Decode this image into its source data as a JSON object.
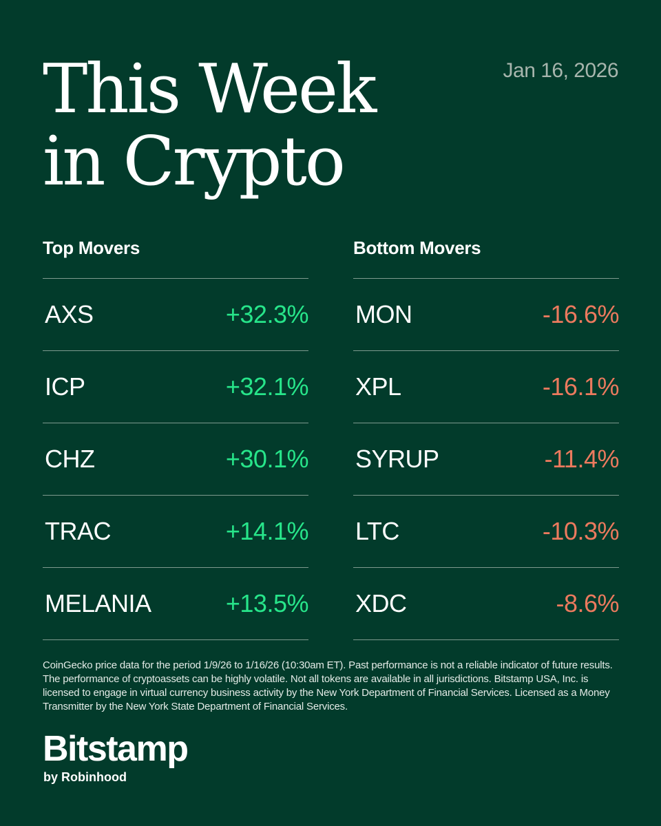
{
  "header": {
    "title_line1": "This Week",
    "title_line2": "in Crypto",
    "date": "Jan 16, 2026"
  },
  "top_movers": {
    "heading": "Top Movers",
    "items": [
      {
        "symbol": "AXS",
        "change": "+32.3%"
      },
      {
        "symbol": "ICP",
        "change": "+32.1%"
      },
      {
        "symbol": "CHZ",
        "change": "+30.1%"
      },
      {
        "symbol": "TRAC",
        "change": "+14.1%"
      },
      {
        "symbol": "MELANIA",
        "change": "+13.5%"
      }
    ]
  },
  "bottom_movers": {
    "heading": "Bottom Movers",
    "items": [
      {
        "symbol": "MON",
        "change": "-16.6%"
      },
      {
        "symbol": "XPL",
        "change": "-16.1%"
      },
      {
        "symbol": "SYRUP",
        "change": "-11.4%"
      },
      {
        "symbol": "LTC",
        "change": "-10.3%"
      },
      {
        "symbol": "XDC",
        "change": "-8.6%"
      }
    ]
  },
  "disclaimer": "CoinGecko price data for the period 1/9/26 to 1/16/26 (10:30am ET). Past performance is not a reliable indicator of future results. The performance of cryptoassets can be highly volatile. Not all tokens are available in all jurisdictions. Bitstamp USA, Inc. is licensed to engage in virtual currency business activity by the New York Department of Financial Services. Licensed as a Money Transmitter by the New York State Department of Financial Services.",
  "brand": {
    "name": "Bitstamp",
    "tagline": "by Robinhood"
  },
  "colors": {
    "background": "#023b2b",
    "positive": "#27e58a",
    "negative": "#ec7a5e",
    "date": "#a7b5ad"
  }
}
